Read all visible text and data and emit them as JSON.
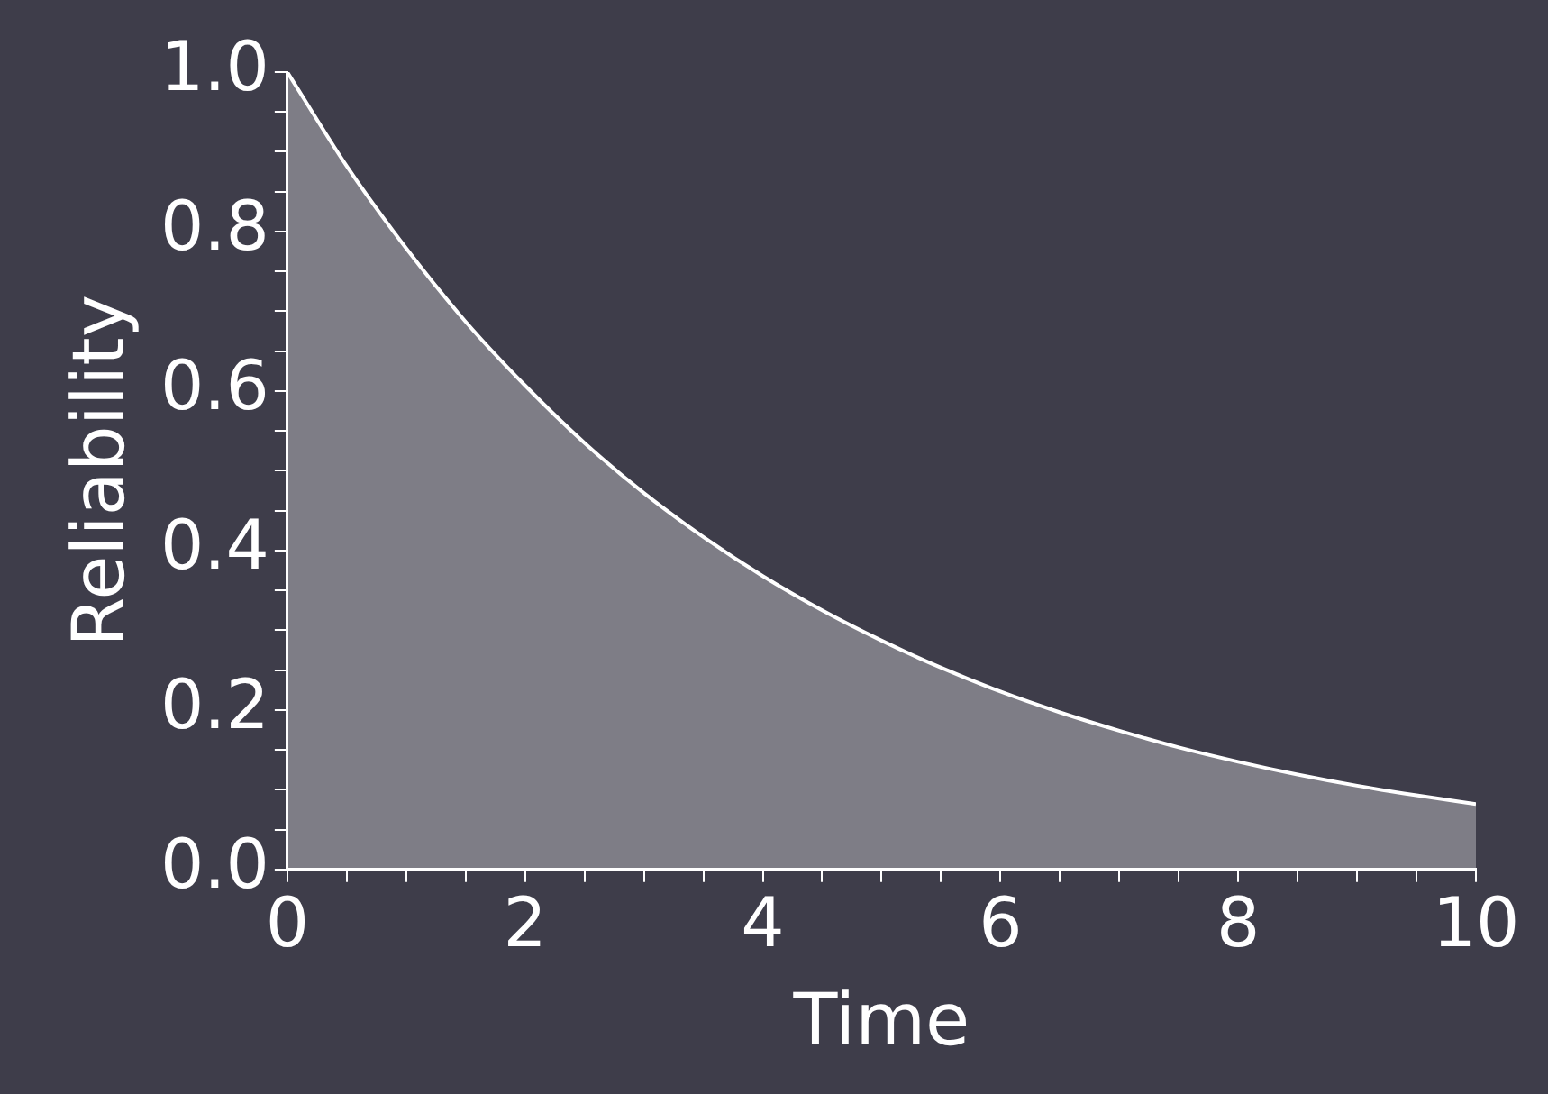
{
  "chart_data": {
    "type": "area",
    "xlabel": "Time",
    "ylabel": "Reliability",
    "x": [
      0,
      0.5,
      1,
      1.5,
      2,
      2.5,
      3,
      3.5,
      4,
      4.5,
      5,
      5.5,
      6,
      6.5,
      7,
      7.5,
      8,
      8.5,
      9,
      9.5,
      10
    ],
    "series": [
      {
        "color": "#ffffff",
        "values": [
          1.0,
          0.882,
          0.779,
          0.687,
          0.607,
          0.535,
          0.472,
          0.417,
          0.368,
          0.325,
          0.287,
          0.253,
          0.223,
          0.197,
          0.174,
          0.153,
          0.135,
          0.119,
          0.105,
          0.093,
          0.082
        ]
      }
    ],
    "xlim": [
      0,
      10
    ],
    "xticks": [
      0,
      {
        "value": 0.5,
        "label": null
      },
      {
        "value": 1,
        "label": null
      },
      {
        "value": 1.5,
        "label": null
      },
      2,
      {
        "value": 2.5,
        "label": null
      },
      {
        "value": 3,
        "label": null
      },
      {
        "value": 3.5,
        "label": null
      },
      4,
      {
        "value": 4.5,
        "label": null
      },
      {
        "value": 5,
        "label": null
      },
      {
        "value": 5.5,
        "label": null
      },
      6,
      {
        "value": 6.5,
        "label": null
      },
      {
        "value": 7,
        "label": null
      },
      {
        "value": 7.5,
        "label": null
      },
      8,
      {
        "value": 8.5,
        "label": null
      },
      {
        "value": 9,
        "label": null
      },
      {
        "value": 9.5,
        "label": null
      },
      10
    ],
    "ylim": [
      0,
      1
    ],
    "yticks": [
      {
        "value": 0,
        "label": "0.0"
      },
      {
        "value": 0.05,
        "label": null
      },
      {
        "value": 0.1,
        "label": null
      },
      {
        "value": 0.15,
        "label": null
      },
      0.2,
      {
        "value": 0.25,
        "label": null
      },
      {
        "value": 0.3,
        "label": null
      },
      {
        "value": 0.35,
        "label": null
      },
      0.4,
      {
        "value": 0.45,
        "label": null
      },
      {
        "value": 0.5,
        "label": null
      },
      {
        "value": 0.55,
        "label": null
      },
      0.6,
      {
        "value": 0.65,
        "label": null
      },
      {
        "value": 0.7,
        "label": null
      },
      {
        "value": 0.75,
        "label": null
      },
      0.8,
      {
        "value": 0.85,
        "label": null
      },
      {
        "value": 0.9,
        "label": null
      },
      {
        "value": 0.95,
        "label": null
      },
      {
        "value": 1,
        "label": "1.0"
      }
    ],
    "grid": false,
    "legend": false
  }
}
